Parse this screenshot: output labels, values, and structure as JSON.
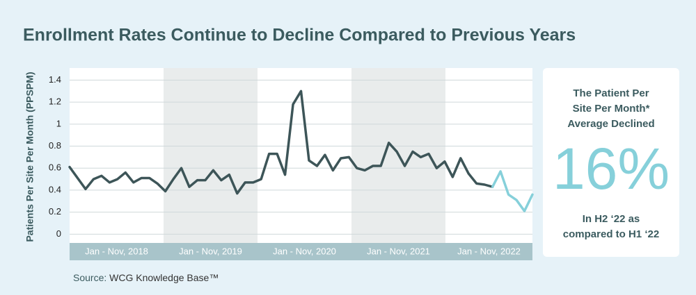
{
  "chart_data": {
    "type": "line",
    "title": "Enrollment Rates Continue to Decline Compared to Previous Years",
    "y_label": "Patients Per Site Per Month (PPSPM)",
    "period_labels": [
      "Jan - Nov, 2018",
      "Jan - Nov, 2019",
      "Jan - Nov, 2020",
      "Jan - Nov, 2021",
      "Jan - Nov, 2022"
    ],
    "ylim": [
      -0.08,
      1.51
    ],
    "yticks": [
      0,
      0.2,
      0.4,
      0.6,
      0.8,
      1,
      1.2,
      1.4
    ],
    "grid": true,
    "series": [
      {
        "color": "#3d5558",
        "values": [
          0.61,
          0.51,
          0.41,
          0.5,
          0.53,
          0.47,
          0.5,
          0.56,
          0.47,
          0.51,
          0.51,
          0.46,
          0.39,
          0.5,
          0.6,
          0.43,
          0.49,
          0.49,
          0.58,
          0.49,
          0.54,
          0.37,
          0.47,
          0.47,
          0.5,
          0.73,
          0.73,
          0.54,
          1.18,
          1.3,
          0.67,
          0.62,
          0.72,
          0.58,
          0.69,
          0.7,
          0.6,
          0.58,
          0.62,
          0.62,
          0.83,
          0.75,
          0.62,
          0.75,
          0.7,
          0.73,
          0.6,
          0.66,
          0.52,
          0.69,
          0.55,
          0.46,
          0.45,
          0.43,
          null,
          null,
          null,
          null,
          null
        ]
      },
      {
        "color": "#86d0da",
        "values": [
          null,
          null,
          null,
          null,
          null,
          null,
          null,
          null,
          null,
          null,
          null,
          null,
          null,
          null,
          null,
          null,
          null,
          null,
          null,
          null,
          null,
          null,
          null,
          null,
          null,
          null,
          null,
          null,
          null,
          null,
          null,
          null,
          null,
          null,
          null,
          null,
          null,
          null,
          null,
          null,
          null,
          null,
          null,
          null,
          null,
          null,
          null,
          null,
          null,
          null,
          null,
          null,
          null,
          0.43,
          0.57,
          0.36,
          0.31,
          0.21,
          0.36
        ]
      }
    ]
  },
  "callout": {
    "heading": [
      "The Patient Per",
      "Site Per Month*",
      "Average Declined"
    ],
    "figure": "16%",
    "footer": [
      "In H2 ‘22 as",
      "compared to H1 ‘22"
    ]
  },
  "source": {
    "prefix": "Source:",
    "name": "WCG Knowledge Base™"
  }
}
